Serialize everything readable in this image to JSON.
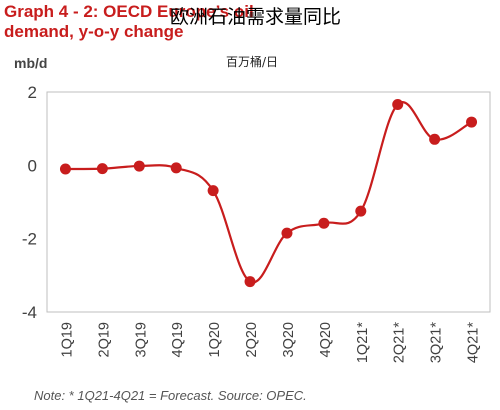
{
  "header": {
    "title_en": "Graph 4 - 2: OECD Europe’s oil demand, y-o-y change",
    "title_cn": "欧洲石油需求量同比",
    "subtitle_cn": "百万桶/日",
    "unit": "mb/d"
  },
  "footer": {
    "note": "Note: * 1Q21-4Q21 = Forecast. Source: OPEC."
  },
  "chart_data": {
    "type": "line",
    "title": "Graph 4 - 2: OECD Europe’s oil demand, y-o-y change",
    "subtitle": "欧洲石油需求量同比",
    "ylabel": "mb/d",
    "xlabel": "",
    "categories": [
      "1Q19",
      "2Q19",
      "3Q19",
      "4Q19",
      "1Q20",
      "2Q20",
      "3Q20",
      "4Q20",
      "1Q21*",
      "2Q21*",
      "3Q21*",
      "4Q21*"
    ],
    "series": [
      {
        "values": [
          -0.1,
          -0.09,
          -0.02,
          -0.07,
          -0.69,
          -3.17,
          -1.85,
          -1.58,
          -1.25,
          1.66,
          0.71,
          1.18
        ],
        "color": "#c81d1d"
      }
    ],
    "ylim": [
      -4,
      2
    ],
    "yticks": [
      2,
      0,
      -2,
      -4
    ],
    "grid": false,
    "smooth": true,
    "marker": "circle"
  }
}
